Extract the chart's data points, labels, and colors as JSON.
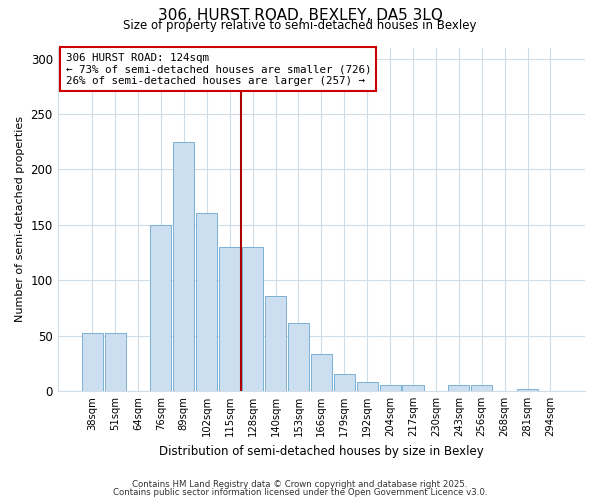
{
  "title": "306, HURST ROAD, BEXLEY, DA5 3LQ",
  "subtitle": "Size of property relative to semi-detached houses in Bexley",
  "xlabel": "Distribution of semi-detached houses by size in Bexley",
  "ylabel": "Number of semi-detached properties",
  "bar_labels": [
    "38sqm",
    "51sqm",
    "64sqm",
    "76sqm",
    "89sqm",
    "102sqm",
    "115sqm",
    "128sqm",
    "140sqm",
    "153sqm",
    "166sqm",
    "179sqm",
    "192sqm",
    "204sqm",
    "217sqm",
    "230sqm",
    "243sqm",
    "256sqm",
    "268sqm",
    "281sqm",
    "294sqm"
  ],
  "bar_values": [
    52,
    52,
    0,
    150,
    225,
    161,
    130,
    130,
    86,
    61,
    33,
    15,
    8,
    5,
    5,
    0,
    5,
    5,
    0,
    2,
    0
  ],
  "bar_color": "#ccdff0",
  "bar_edge_color": "#7ab0d4",
  "vline_color": "#aa0000",
  "annotation_line1": "306 HURST ROAD: 124sqm",
  "annotation_line2": "← 73% of semi-detached houses are smaller (726)",
  "annotation_line3": "26% of semi-detached houses are larger (257) →",
  "annotation_box_color": "#ffffff",
  "annotation_box_edge": "#cc0000",
  "ylim": [
    0,
    310
  ],
  "yticks": [
    0,
    50,
    100,
    150,
    200,
    250,
    300
  ],
  "footer1": "Contains HM Land Registry data © Crown copyright and database right 2025.",
  "footer2": "Contains public sector information licensed under the Open Government Licence v3.0.",
  "background_color": "#ffffff",
  "plot_background": "#ffffff",
  "grid_color": "#d0dce8"
}
